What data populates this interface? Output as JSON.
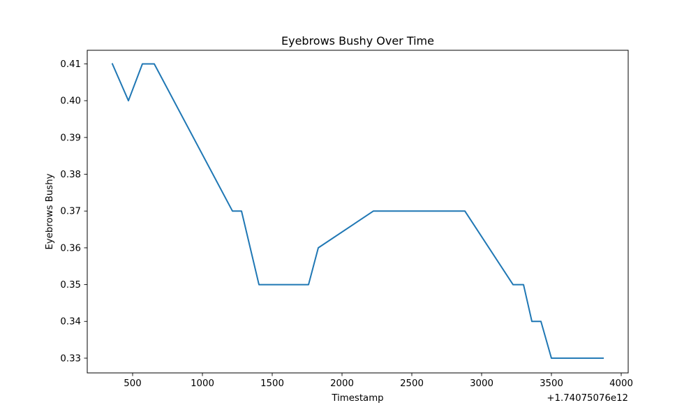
{
  "chart_data": {
    "type": "line",
    "title": "Eyebrows Bushy Over Time",
    "xlabel": "Timestamp",
    "ylabel": "Eyebrows Bushy",
    "x_offset_label": "+1.74075076e12",
    "xlim": [
      175,
      4050
    ],
    "ylim": [
      0.326,
      0.4137
    ],
    "x_ticks": [
      500,
      1000,
      1500,
      2000,
      2500,
      3000,
      3500,
      4000
    ],
    "x_tick_labels": [
      "500",
      "1000",
      "1500",
      "2000",
      "2500",
      "3000",
      "3500",
      "4000"
    ],
    "y_ticks": [
      0.33,
      0.34,
      0.35,
      0.36,
      0.37,
      0.38,
      0.39,
      0.4,
      0.41
    ],
    "y_tick_labels": [
      "0.33",
      "0.34",
      "0.35",
      "0.36",
      "0.37",
      "0.38",
      "0.39",
      "0.40",
      "0.41"
    ],
    "grid": false,
    "series": [
      {
        "color": "#1f77b4",
        "x": [
          355,
          470,
          570,
          655,
          1215,
          1280,
          1405,
          1760,
          1830,
          2225,
          2880,
          3225,
          3300,
          3360,
          3425,
          3500,
          3870
        ],
        "y": [
          0.41,
          0.4,
          0.41,
          0.41,
          0.37,
          0.37,
          0.35,
          0.35,
          0.36,
          0.37,
          0.37,
          0.35,
          0.35,
          0.34,
          0.34,
          0.33,
          0.33
        ]
      }
    ]
  }
}
